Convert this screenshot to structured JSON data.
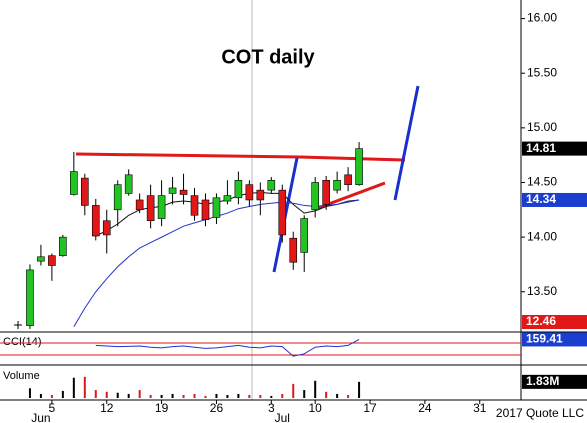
{
  "chart_data": {
    "type": "candlestick",
    "title": "COT daily",
    "xlim": [
      -2.73,
      44.76
    ],
    "xticks": [
      {
        "value": 2,
        "label": "5"
      },
      {
        "value": 7,
        "label": "12"
      },
      {
        "value": 12,
        "label": "19"
      },
      {
        "value": 17,
        "label": "26"
      },
      {
        "value": 22,
        "label": "3"
      },
      {
        "value": 26,
        "label": "10"
      },
      {
        "value": 31,
        "label": "17"
      },
      {
        "value": 36,
        "label": "24"
      },
      {
        "value": 41,
        "label": "31"
      }
    ],
    "month_labels": [
      {
        "value": 1,
        "label": "Jun"
      },
      {
        "value": 23,
        "label": "Jul"
      }
    ],
    "ylim": [
      13.15,
      16.17
    ],
    "yticks": [
      {
        "value": 13.5,
        "label": "13.50"
      },
      {
        "value": 14,
        "label": "14.00"
      },
      {
        "value": 14.5,
        "label": "14.50"
      },
      {
        "value": 15,
        "label": "15.00"
      },
      {
        "value": 15.5,
        "label": "15.50"
      },
      {
        "value": 16,
        "label": "16.00"
      }
    ],
    "up_color": "#22c322",
    "down_color": "#e01818",
    "open": [
      13.19,
      13.78,
      13.83,
      13.83,
      14.39,
      14.54,
      14.29,
      14.15,
      14.25,
      14.4,
      14.34,
      14.38,
      14.17,
      14.4,
      14.43,
      14.38,
      14.34,
      14.18,
      14.33,
      14.36,
      14.48,
      14.43,
      14.43,
      14.43,
      13.99,
      13.86,
      14.25,
      14.52,
      14.43,
      14.57,
      14.48
    ],
    "high": [
      13.75,
      13.93,
      13.85,
      14.02,
      14.78,
      14.58,
      14.35,
      14.25,
      14.52,
      14.62,
      14.4,
      14.48,
      14.52,
      14.55,
      14.58,
      14.45,
      14.4,
      14.4,
      14.52,
      14.6,
      14.52,
      14.5,
      14.55,
      14.48,
      14.05,
      14.2,
      14.55,
      14.56,
      14.6,
      14.64,
      14.87
    ],
    "low": [
      13.16,
      13.74,
      13.6,
      13.82,
      14.38,
      14.2,
      13.97,
      13.85,
      14.1,
      14.38,
      14.22,
      14.08,
      14.1,
      14.3,
      14.3,
      14.15,
      14.1,
      14.12,
      14.3,
      14.3,
      14.28,
      14.2,
      14.4,
      13.95,
      13.7,
      13.68,
      14.18,
      14.25,
      14.4,
      14.42,
      14.47
    ],
    "close": [
      13.7,
      13.82,
      13.74,
      14.0,
      14.6,
      14.29,
      14.01,
      14.02,
      14.48,
      14.57,
      14.25,
      14.15,
      14.38,
      14.45,
      14.39,
      14.2,
      14.16,
      14.36,
      14.38,
      14.52,
      14.34,
      14.34,
      14.52,
      14.02,
      13.77,
      14.17,
      14.5,
      14.3,
      14.52,
      14.48,
      14.81
    ],
    "moving_averages": [
      {
        "color": "#111111",
        "values": [
          null,
          null,
          null,
          null,
          null,
          null,
          14.01,
          14.06,
          14.12,
          14.2,
          14.25,
          14.27,
          14.28,
          14.32,
          14.33,
          14.32,
          14.3,
          14.32,
          14.34,
          14.38,
          14.4,
          14.41,
          14.4,
          14.4,
          14.3,
          14.22,
          14.24,
          14.28,
          14.3,
          14.33,
          14.34
        ]
      },
      {
        "color": "#2233cc",
        "values": [
          null,
          null,
          null,
          null,
          13.18,
          13.35,
          13.5,
          13.62,
          13.73,
          13.82,
          13.9,
          13.95,
          14.0,
          14.05,
          14.1,
          14.13,
          14.16,
          14.19,
          14.22,
          14.26,
          14.28,
          14.3,
          14.31,
          14.32,
          14.31,
          14.29,
          14.28,
          14.29,
          14.3,
          14.32,
          14.34
        ]
      }
    ],
    "price_badges": [
      {
        "value": 14.81,
        "color": "#000000"
      },
      {
        "value": 14.34,
        "color": "#1a3fd0"
      }
    ],
    "bottom_badge": {
      "value": 12.46,
      "color": "#e01818"
    },
    "cci": {
      "label": "CCI(14)",
      "ylim": [
        -233,
        267
      ],
      "levels": [
        100,
        -100
      ],
      "color": "#2233cc",
      "values": [
        null,
        null,
        null,
        null,
        null,
        null,
        60,
        50,
        40,
        45,
        50,
        30,
        20,
        40,
        50,
        30,
        10,
        20,
        40,
        60,
        30,
        20,
        50,
        40,
        -120,
        -80,
        30,
        50,
        40,
        60,
        159.41
      ],
      "badge": 159.41,
      "badge_color": "#1a3fd0"
    },
    "volume": {
      "label": "Volume",
      "ylim": [
        0,
        3.4
      ],
      "values": [
        1.1,
        0.46,
        0.34,
        0.8,
        2.3,
        2.4,
        0.9,
        0.7,
        0.6,
        0.46,
        0.9,
        0.34,
        0.34,
        0.46,
        0.34,
        0.46,
        0.23,
        0.46,
        0.34,
        0.46,
        0.34,
        0.34,
        0.23,
        0.46,
        1.6,
        0.9,
        1.95,
        0.7,
        0.46,
        0.34,
        1.83
      ],
      "badge": 1.83,
      "badge_label": "1.83M"
    },
    "credit": "2017 Quote LLC"
  }
}
